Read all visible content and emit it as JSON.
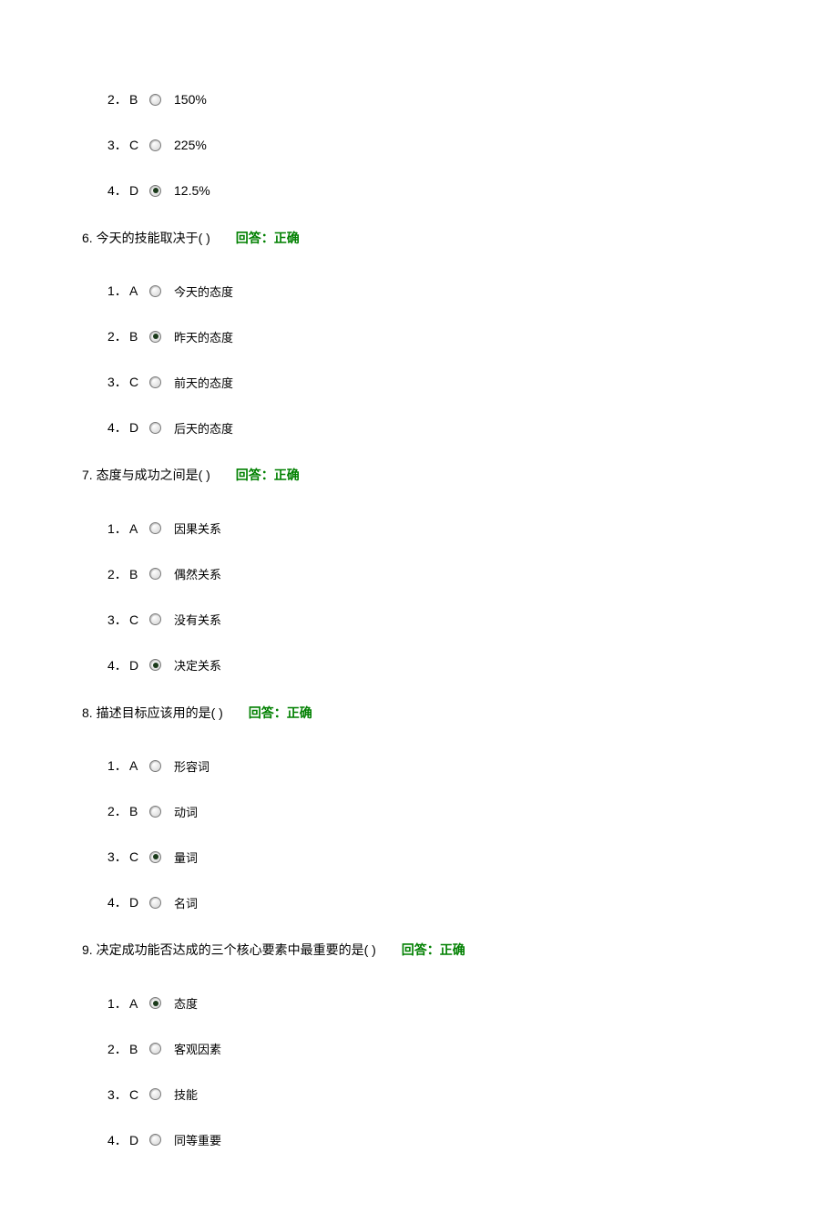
{
  "colors": {
    "text": "#000000",
    "feedback": "#008000",
    "background": "#ffffff"
  },
  "partial_question": {
    "options": [
      {
        "index": "2．",
        "letter": "B",
        "selected": false,
        "text": "150%"
      },
      {
        "index": "3．",
        "letter": "C",
        "selected": false,
        "text": "225%"
      },
      {
        "index": "4．",
        "letter": "D",
        "selected": true,
        "text": "12.5%"
      }
    ]
  },
  "questions": [
    {
      "number": "6.",
      "text": "今天的技能取决于(  )",
      "feedback_label": "回答：",
      "feedback_value": "正确",
      "options": [
        {
          "index": "1．",
          "letter": "A",
          "selected": false,
          "text": "今天的态度"
        },
        {
          "index": "2．",
          "letter": "B",
          "selected": true,
          "text": "昨天的态度"
        },
        {
          "index": "3．",
          "letter": "C",
          "selected": false,
          "text": "前天的态度"
        },
        {
          "index": "4．",
          "letter": "D",
          "selected": false,
          "text": "后天的态度"
        }
      ]
    },
    {
      "number": "7.",
      "text": "态度与成功之间是(  )",
      "feedback_label": "回答：",
      "feedback_value": "正确",
      "options": [
        {
          "index": "1．",
          "letter": "A",
          "selected": false,
          "text": "因果关系"
        },
        {
          "index": "2．",
          "letter": "B",
          "selected": false,
          "text": "偶然关系"
        },
        {
          "index": "3．",
          "letter": "C",
          "selected": false,
          "text": "没有关系"
        },
        {
          "index": "4．",
          "letter": "D",
          "selected": true,
          "text": "决定关系"
        }
      ]
    },
    {
      "number": "8.",
      "text": "描述目标应该用的是(  )",
      "feedback_label": "回答：",
      "feedback_value": "正确",
      "options": [
        {
          "index": "1．",
          "letter": "A",
          "selected": false,
          "text": "形容词"
        },
        {
          "index": "2．",
          "letter": "B",
          "selected": false,
          "text": "动词"
        },
        {
          "index": "3．",
          "letter": "C",
          "selected": true,
          "text": "量词"
        },
        {
          "index": "4．",
          "letter": "D",
          "selected": false,
          "text": "名词"
        }
      ]
    },
    {
      "number": "9.",
      "text": "决定成功能否达成的三个核心要素中最重要的是(  )",
      "feedback_label": "回答：",
      "feedback_value": "正确",
      "options": [
        {
          "index": "1．",
          "letter": "A",
          "selected": true,
          "text": "态度"
        },
        {
          "index": "2．",
          "letter": "B",
          "selected": false,
          "text": "客观因素"
        },
        {
          "index": "3．",
          "letter": "C",
          "selected": false,
          "text": "技能"
        },
        {
          "index": "4．",
          "letter": "D",
          "selected": false,
          "text": "同等重要"
        }
      ]
    }
  ]
}
